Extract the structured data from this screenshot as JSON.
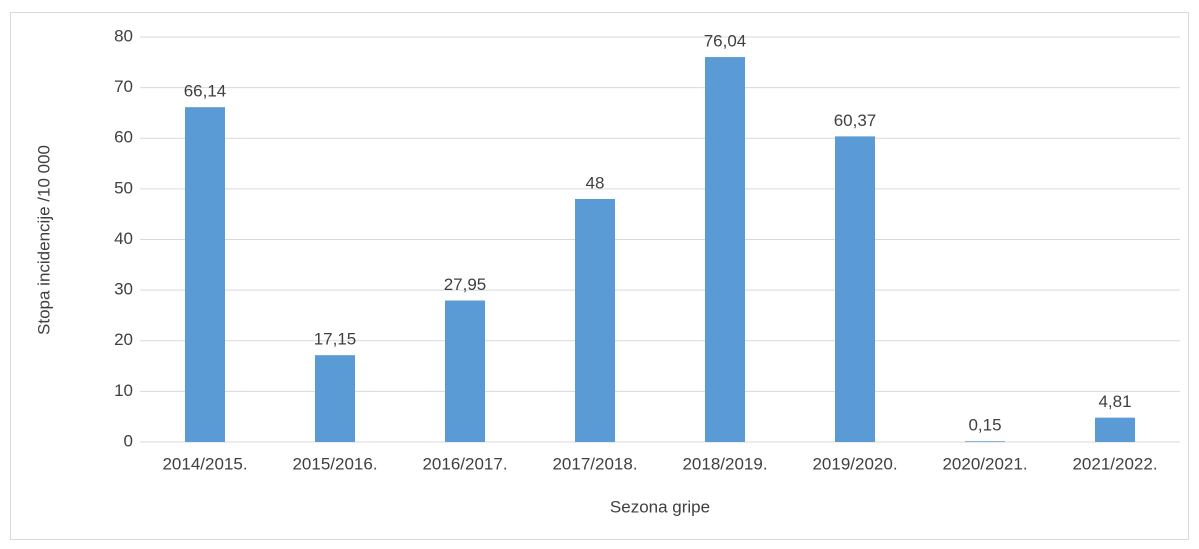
{
  "chart_data": {
    "type": "bar",
    "x_label": "Sezona gripe",
    "y_label": "Stopa incidencije /10 000",
    "categories": [
      "2014/2015.",
      "2015/2016.",
      "2016/2017.",
      "2017/2018.",
      "2018/2019.",
      "2019/2020.",
      "2020/2021.",
      "2021/2022."
    ],
    "values": [
      66.14,
      17.15,
      27.95,
      48,
      76.04,
      60.37,
      0.15,
      4.81
    ],
    "value_labels": [
      "66,14",
      "17,15",
      "27,95",
      "48",
      "76,04",
      "60,37",
      "0,15",
      "4,81"
    ],
    "color": "#5b9bd5",
    "ylim": [
      0,
      80
    ],
    "yticks": [
      0,
      10,
      20,
      30,
      40,
      50,
      60,
      70,
      80
    ],
    "grid": true
  }
}
